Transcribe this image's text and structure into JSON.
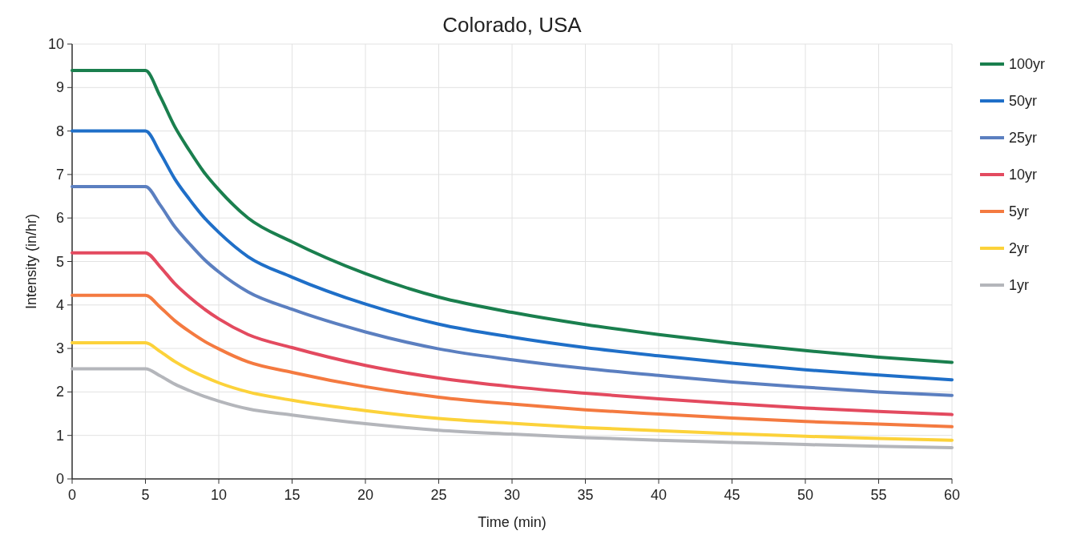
{
  "chart_data": {
    "type": "line",
    "title": "Colorado,  USA",
    "xlabel": "Time (min)",
    "ylabel": "Intensity (in/hr)",
    "x": [
      0,
      5,
      6,
      7,
      8,
      9,
      10,
      12,
      15,
      20,
      25,
      30,
      35,
      40,
      45,
      50,
      55,
      60
    ],
    "xlim": [
      0,
      60
    ],
    "xticks": [
      0,
      5,
      10,
      15,
      20,
      25,
      30,
      35,
      40,
      45,
      50,
      55,
      60
    ],
    "ylim": [
      0,
      10
    ],
    "yticks": [
      0,
      1,
      2,
      3,
      4,
      5,
      6,
      7,
      8,
      9,
      10
    ],
    "grid": true,
    "legend": "top right",
    "marker": "none",
    "line_style": "solid",
    "series": [
      {
        "name": "100yr",
        "color": "#1a7f4e",
        "values": [
          9.39,
          9.39,
          8.8,
          8.1,
          7.55,
          7.05,
          6.65,
          6.0,
          5.45,
          4.72,
          4.18,
          3.83,
          3.55,
          3.32,
          3.12,
          2.95,
          2.8,
          2.68
        ]
      },
      {
        "name": "50yr",
        "color": "#1f6fc8",
        "values": [
          8.0,
          8.0,
          7.5,
          6.9,
          6.43,
          6.01,
          5.67,
          5.11,
          4.64,
          4.02,
          3.56,
          3.26,
          3.02,
          2.83,
          2.66,
          2.51,
          2.39,
          2.28
        ]
      },
      {
        "name": "25yr",
        "color": "#5b7fc0",
        "values": [
          6.72,
          6.72,
          6.3,
          5.8,
          5.41,
          5.05,
          4.76,
          4.3,
          3.9,
          3.38,
          2.99,
          2.74,
          2.54,
          2.38,
          2.23,
          2.11,
          2.0,
          1.92
        ]
      },
      {
        "name": "10yr",
        "color": "#e34a5f",
        "values": [
          5.2,
          5.2,
          4.88,
          4.49,
          4.18,
          3.91,
          3.68,
          3.32,
          3.02,
          2.61,
          2.32,
          2.12,
          1.97,
          1.84,
          1.73,
          1.63,
          1.55,
          1.48
        ]
      },
      {
        "name": "5yr",
        "color": "#f47a40",
        "values": [
          4.22,
          4.22,
          3.95,
          3.64,
          3.39,
          3.17,
          2.99,
          2.69,
          2.45,
          2.12,
          1.88,
          1.72,
          1.59,
          1.49,
          1.4,
          1.32,
          1.26,
          1.2
        ]
      },
      {
        "name": "2yr",
        "color": "#fcd23a",
        "values": [
          3.13,
          3.13,
          2.93,
          2.7,
          2.51,
          2.35,
          2.21,
          2.0,
          1.81,
          1.57,
          1.39,
          1.28,
          1.18,
          1.11,
          1.04,
          0.98,
          0.93,
          0.89
        ]
      },
      {
        "name": "1yr",
        "color": "#b4b6bb",
        "values": [
          2.53,
          2.53,
          2.37,
          2.18,
          2.03,
          1.9,
          1.79,
          1.61,
          1.47,
          1.27,
          1.12,
          1.03,
          0.95,
          0.89,
          0.84,
          0.79,
          0.75,
          0.72
        ]
      }
    ]
  }
}
